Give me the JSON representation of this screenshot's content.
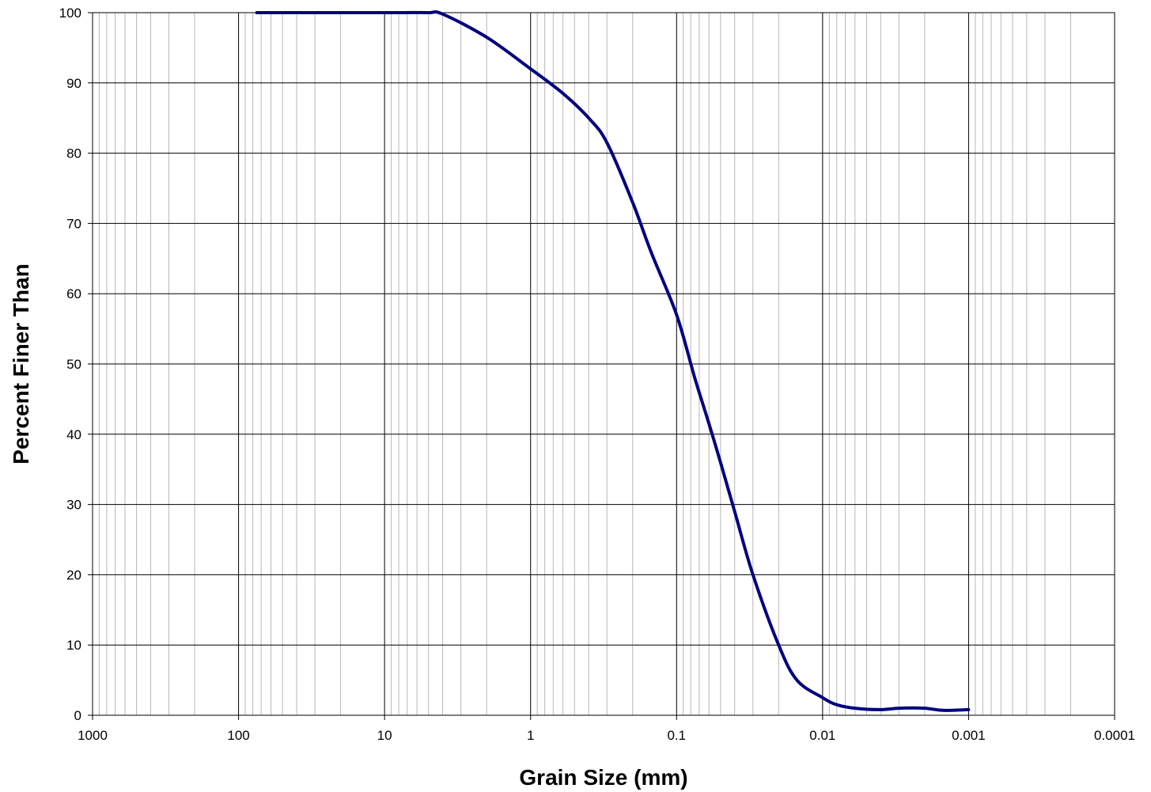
{
  "chart_data": {
    "type": "line",
    "title": "",
    "xlabel": "Grain Size (mm)",
    "ylabel": "Percent Finer Than",
    "x_scale": "log",
    "x_reversed": true,
    "xlim": [
      1000,
      0.0001
    ],
    "ylim": [
      0,
      100
    ],
    "grid": true,
    "legend": "none",
    "x_ticks": [
      "1000",
      "100",
      "10",
      "1",
      "0.1",
      "0.01",
      "0.001",
      "0.0001"
    ],
    "y_ticks": [
      "0",
      "10",
      "20",
      "30",
      "40",
      "50",
      "60",
      "70",
      "80",
      "90",
      "100"
    ],
    "series": [
      {
        "color": "#000080",
        "x": [
          75,
          20,
          8,
          5,
          4,
          2,
          1,
          0.6,
          0.4,
          0.3,
          0.2,
          0.15,
          0.1,
          0.075,
          0.06,
          0.05,
          0.04,
          0.03,
          0.02,
          0.015,
          0.01,
          0.008,
          0.006,
          0.004,
          0.003,
          0.002,
          0.0015,
          0.001
        ],
        "values": [
          100,
          100,
          100,
          100,
          99.8,
          96.5,
          92.0,
          88.5,
          85.0,
          81.5,
          73.0,
          66.0,
          57.0,
          48.0,
          41.5,
          36.0,
          29.0,
          20.0,
          10.0,
          5.0,
          2.5,
          1.5,
          1.0,
          0.8,
          1.0,
          1.0,
          0.7,
          0.8
        ]
      }
    ],
    "colors": {
      "line": "#000080",
      "major_grid": "#000000",
      "minor_grid": "#b8b8b8"
    }
  }
}
